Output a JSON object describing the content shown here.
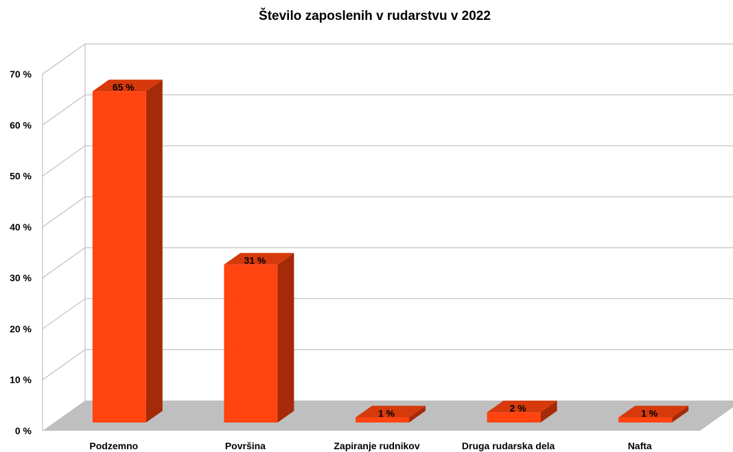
{
  "chart_data": {
    "type": "bar",
    "title": "Število zaposlenih v rudarstvu v 2022",
    "categories": [
      "Podzemno",
      "Površina",
      "Zapiranje rudnikov",
      "Druga rudarska dela",
      "Nafta"
    ],
    "values": [
      65,
      31,
      1,
      2,
      1
    ],
    "data_labels": [
      "65 %",
      "31 %",
      "1 %",
      "2 %",
      "1 %"
    ],
    "y_ticks": [
      {
        "value": 0,
        "label": "0 %"
      },
      {
        "value": 10,
        "label": "10 %"
      },
      {
        "value": 20,
        "label": "20 %"
      },
      {
        "value": 30,
        "label": "30 %"
      },
      {
        "value": 40,
        "label": "40 %"
      },
      {
        "value": 50,
        "label": "50 %"
      },
      {
        "value": 60,
        "label": "60 %"
      },
      {
        "value": 70,
        "label": "70 %"
      }
    ],
    "ylim": [
      0,
      70
    ],
    "grid": true,
    "legend": "none",
    "three_d": true,
    "colors": {
      "bar_front": "#FF4410",
      "bar_side": "#A52A08",
      "bar_top": "#D63A0C",
      "floor": "#BFBFBF",
      "grid": "#BFBFBF"
    }
  }
}
